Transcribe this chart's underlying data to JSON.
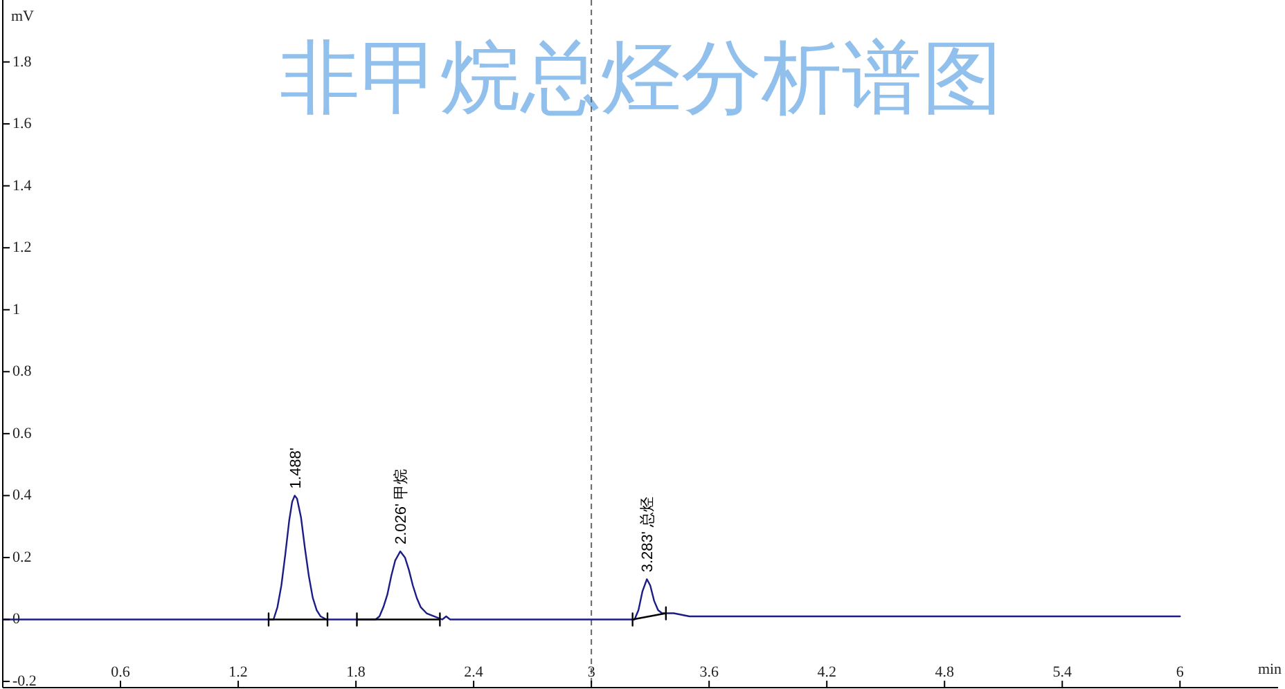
{
  "chart_data": {
    "type": "line",
    "title": "非甲烷总烃分析谱图",
    "xlabel": "min",
    "ylabel": "mV",
    "xlim": [
      0,
      6.5
    ],
    "xticks": [
      0.6,
      1.2,
      1.8,
      2.4,
      3,
      3.6,
      4.2,
      4.8,
      5.4,
      6
    ],
    "ylim": [
      -0.22,
      2
    ],
    "yticks": [
      -0.2,
      0,
      0.2,
      0.4,
      0.6,
      0.8,
      1,
      1.2,
      1.4,
      1.6,
      1.8
    ],
    "series": [
      {
        "color": "#1c1c87",
        "x": [
          0,
          1.38,
          1.4,
          1.42,
          1.44,
          1.46,
          1.475,
          1.488,
          1.5,
          1.52,
          1.54,
          1.56,
          1.58,
          1.6,
          1.62,
          1.65,
          1.9,
          1.92,
          1.94,
          1.96,
          1.98,
          2,
          2.026,
          2.05,
          2.07,
          2.09,
          2.11,
          2.13,
          2.16,
          2.2,
          2.24,
          2.26,
          2.28,
          3.22,
          3.24,
          3.26,
          3.283,
          3.3,
          3.32,
          3.34,
          3.36,
          3.42,
          3.5,
          6
        ],
        "values": [
          0,
          0,
          0.04,
          0.11,
          0.21,
          0.32,
          0.38,
          0.4,
          0.39,
          0.33,
          0.23,
          0.14,
          0.07,
          0.03,
          0.01,
          0,
          0,
          0.01,
          0.04,
          0.08,
          0.14,
          0.19,
          0.22,
          0.2,
          0.16,
          0.11,
          0.07,
          0.04,
          0.02,
          0.01,
          0,
          0.01,
          0,
          0,
          0.03,
          0.09,
          0.13,
          0.11,
          0.06,
          0.03,
          0.02,
          0.02,
          0.01,
          0.01
        ]
      },
      {
        "color": "#000000",
        "x": [
          1.355,
          1.355,
          1.355,
          1.655,
          1.655,
          1.655
        ],
        "values": [
          0.02,
          -0.02,
          0,
          0,
          0.02,
          -0.02
        ]
      },
      {
        "color": "#000000",
        "x": [
          1.805,
          1.805,
          1.805,
          2.228,
          2.228,
          2.228
        ],
        "values": [
          0.02,
          -0.02,
          0,
          0,
          0.02,
          -0.02
        ]
      },
      {
        "color": "#000000",
        "x": [
          3.21,
          3.21,
          3.21,
          3.38,
          3.38,
          3.38
        ],
        "values": [
          0.02,
          -0.02,
          0,
          0.02,
          0.04,
          0
        ]
      }
    ],
    "ref_lines": [
      {
        "axis": "x",
        "value": 3,
        "line_style": "dashed",
        "color": "#666666"
      }
    ],
    "annotations": [
      {
        "text": "1.488'",
        "x": 1.488,
        "y": 0.4
      },
      {
        "text": "2.026' 甲烷",
        "x": 2.026,
        "y": 0.22
      },
      {
        "text": "3.283' 总烃",
        "x": 3.283,
        "y": 0.13
      }
    ]
  }
}
